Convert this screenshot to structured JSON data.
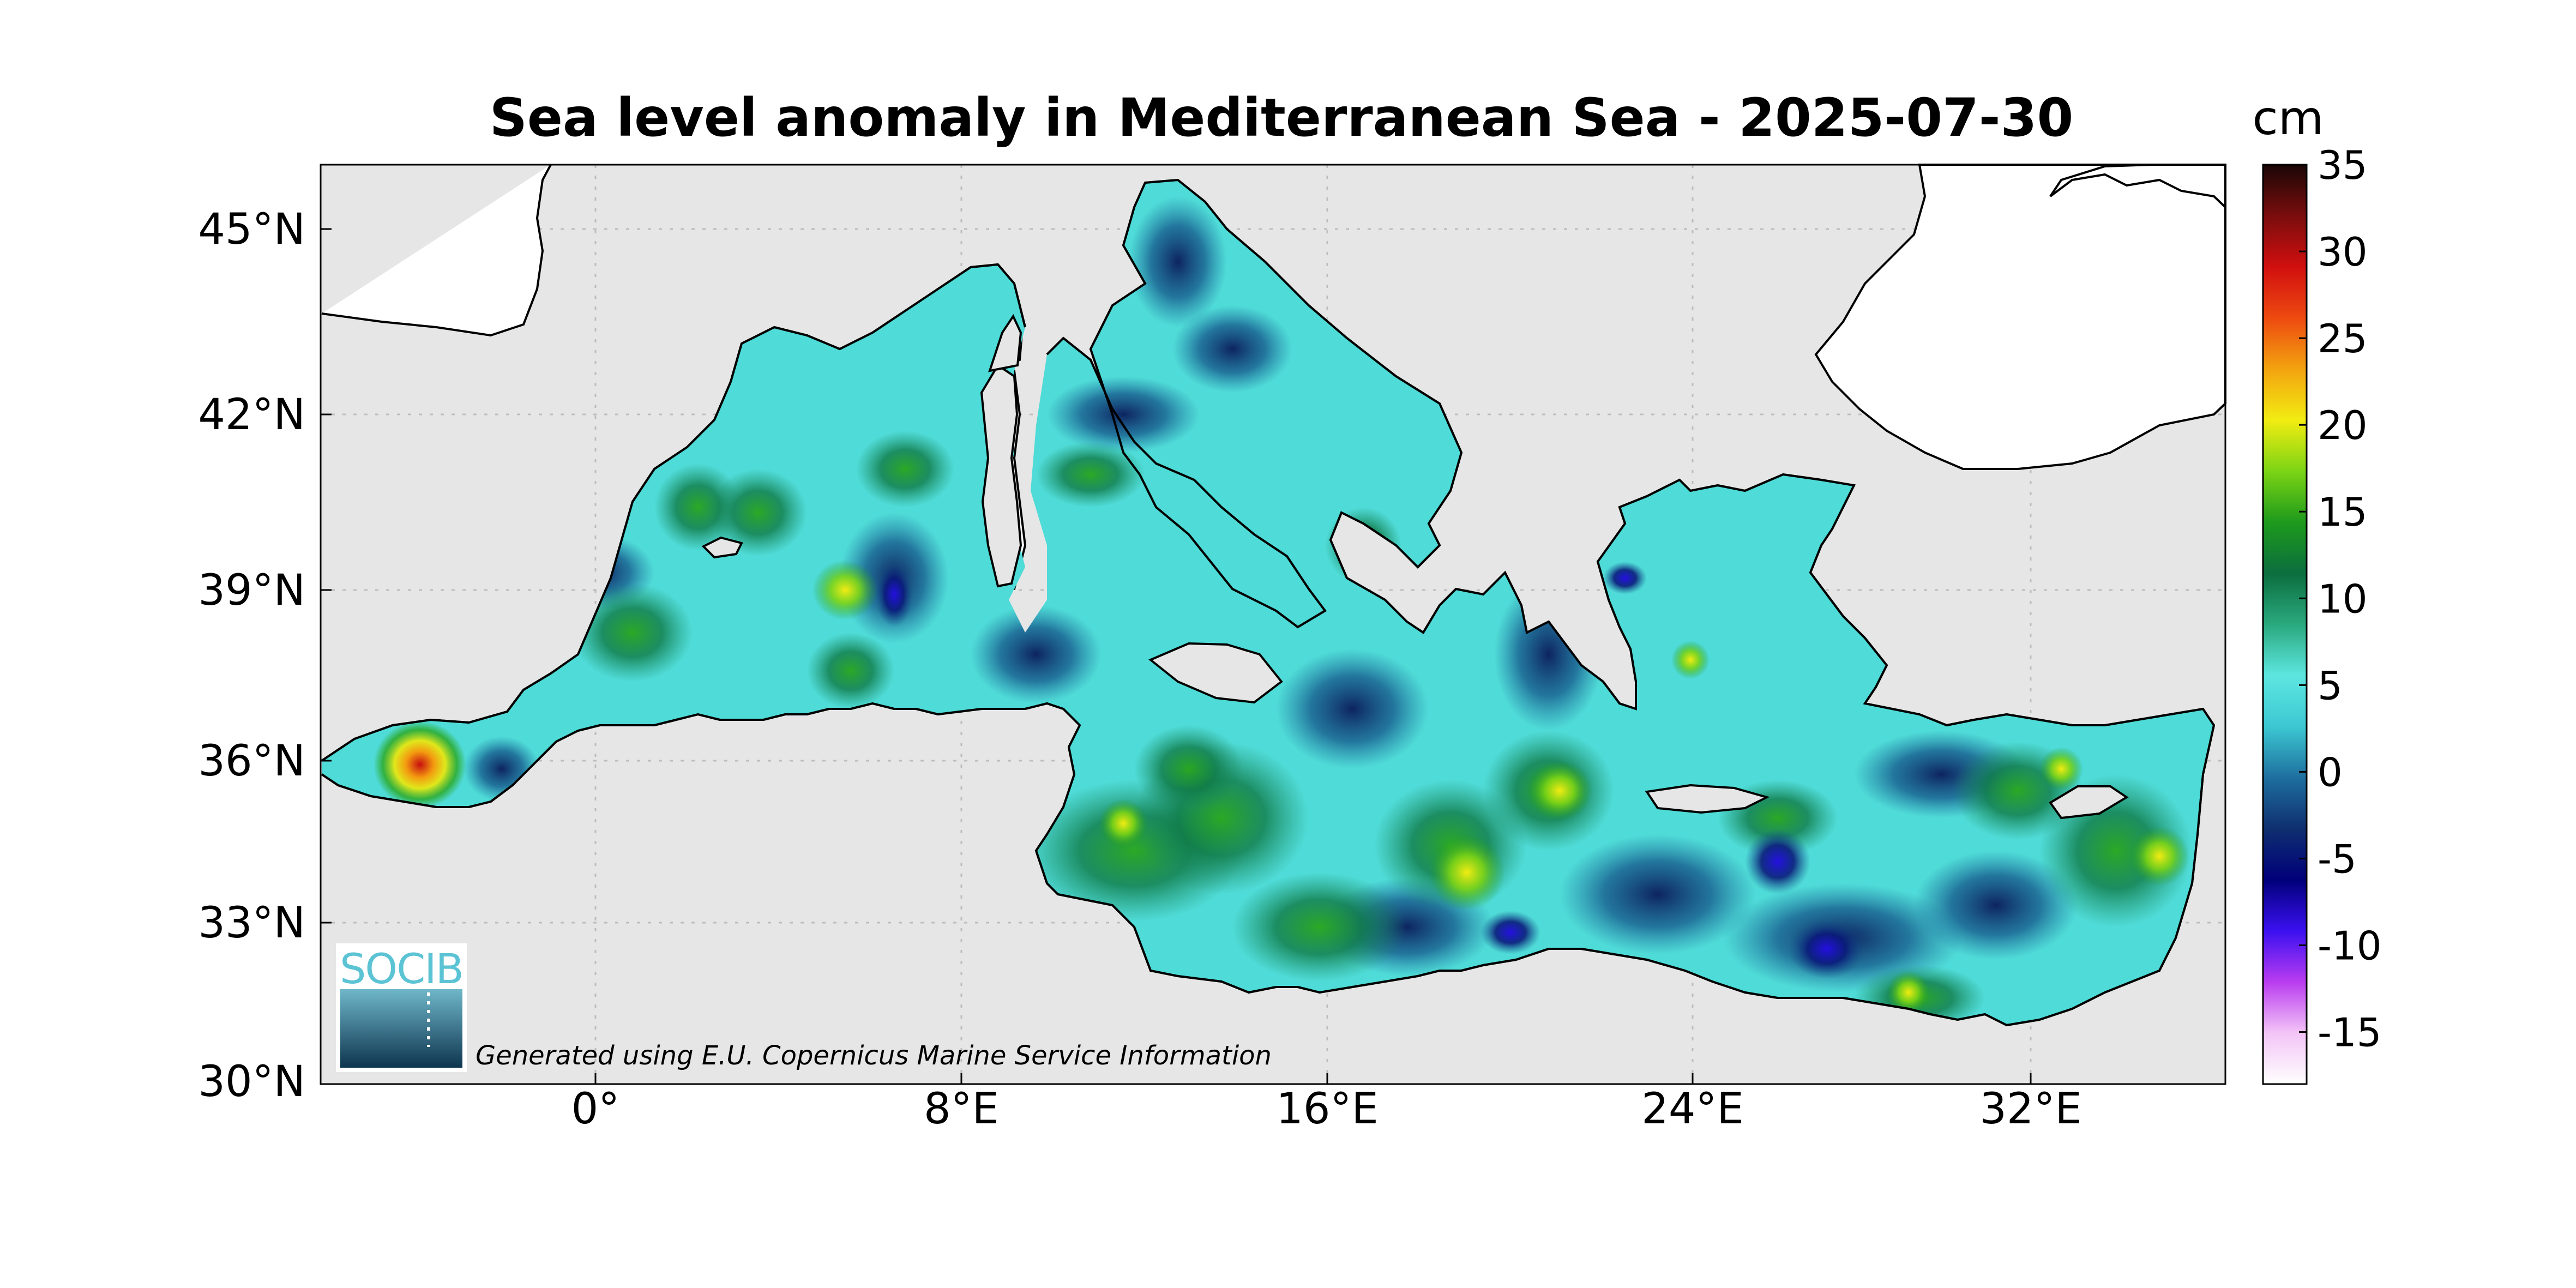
{
  "title": "Sea level anomaly in Mediterranean Sea - 2025-07-30",
  "axes": {
    "x_ticks": [
      "0°",
      "8°E",
      "16°E",
      "24°E",
      "32°E"
    ],
    "y_ticks": [
      "45°N",
      "42°N",
      "39°N",
      "36°N",
      "33°N",
      "30°N"
    ]
  },
  "colorbar": {
    "unit": "cm",
    "ticks": [
      "35",
      "30",
      "25",
      "20",
      "15",
      "10",
      "5",
      "0",
      "-5",
      "-10",
      "-15"
    ],
    "range": [
      -18,
      35
    ],
    "colors": [
      "#ffffff",
      "#f3c4f7",
      "#b93cf0",
      "#3b10f0",
      "#00007a",
      "#0f2f70",
      "#1e6f9f",
      "#3cc8d2",
      "#5de6e0",
      "#2aa97e",
      "#0b6e3e",
      "#1e9a1c",
      "#7cd414",
      "#f2ec12",
      "#f3a30f",
      "#ee4a10",
      "#d10f0f",
      "#7a0d0d",
      "#1a0606"
    ]
  },
  "logo": {
    "text": "SOCIB"
  },
  "credit": "Generated using E.U. Copernicus Marine Service Information",
  "colors": {
    "background_sea": "#e6e6e6",
    "land": "#ffffff",
    "sla_base": "#4fdbd7"
  }
}
